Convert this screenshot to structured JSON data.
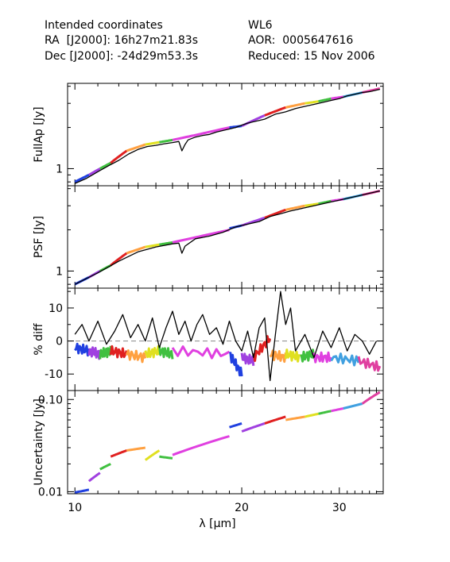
{
  "header": {
    "left_line1": "Intended coordinates",
    "left_line2": "RA  [J2000]: 16h27m21.83s",
    "left_line3": "Dec [J2000]: -24d29m53.3s",
    "right_line1": "WL6",
    "right_line2": "AOR:  0005647616",
    "right_line3": "Reduced: 15 Nov 2006"
  },
  "chart_data": [
    {
      "type": "line",
      "panel": "fullap",
      "ylabel": "FullAp [Jy]",
      "yscale": "log",
      "ylim": [
        0.75,
        4.2
      ],
      "ytick_labels": [
        {
          "value": 1,
          "label": "1"
        }
      ],
      "series": [
        {
          "color": "#000000",
          "x": [
            10.0,
            10.5,
            11.0,
            11.5,
            12.0,
            12.5,
            13.0,
            13.5,
            14.0,
            14.5,
            15.0,
            15.4,
            15.6,
            15.8,
            16.0,
            16.5,
            17.0,
            17.5,
            18.0,
            18.5,
            19.0,
            19.5,
            20.0,
            20.5,
            21.0,
            21.5,
            22.0,
            22.5,
            23.0,
            23.5,
            24.0,
            25.0,
            26.0,
            27.0,
            28.0,
            29.0,
            30.0,
            31.0,
            32.0,
            33.0,
            34.0,
            35.0,
            35.5
          ],
          "y": [
            0.78,
            0.85,
            0.95,
            1.05,
            1.15,
            1.28,
            1.38,
            1.45,
            1.48,
            1.52,
            1.55,
            1.58,
            1.35,
            1.5,
            1.62,
            1.7,
            1.75,
            1.78,
            1.85,
            1.9,
            1.95,
            2.0,
            2.08,
            2.15,
            2.2,
            2.25,
            2.3,
            2.4,
            2.5,
            2.55,
            2.6,
            2.75,
            2.85,
            2.95,
            3.05,
            3.15,
            3.25,
            3.4,
            3.5,
            3.6,
            3.65,
            3.75,
            3.8
          ]
        }
      ],
      "colored_series": [
        {
          "color": "#2040e0",
          "x": [
            10.0,
            10.6
          ],
          "y": [
            0.8,
            0.9
          ]
        },
        {
          "color": "#a040e0",
          "x": [
            10.6,
            11.1
          ],
          "y": [
            0.9,
            1.0
          ]
        },
        {
          "color": "#40c040",
          "x": [
            11.1,
            11.6
          ],
          "y": [
            1.0,
            1.1
          ]
        },
        {
          "color": "#e02020",
          "x": [
            11.6,
            12.4
          ],
          "y": [
            1.1,
            1.35
          ]
        },
        {
          "color": "#ffa040",
          "x": [
            12.4,
            13.4
          ],
          "y": [
            1.35,
            1.5
          ]
        },
        {
          "color": "#e0e020",
          "x": [
            13.4,
            14.2
          ],
          "y": [
            1.5,
            1.56
          ]
        },
        {
          "color": "#40c040",
          "x": [
            14.2,
            15.0
          ],
          "y": [
            1.56,
            1.62
          ]
        },
        {
          "color": "#e040e0",
          "x": [
            15.0,
            16.4
          ],
          "y": [
            1.62,
            1.75
          ]
        },
        {
          "color": "#e040e0",
          "x": [
            16.4,
            19.0
          ],
          "y": [
            1.75,
            2.0
          ]
        },
        {
          "color": "#2040e0",
          "x": [
            19.0,
            20.0
          ],
          "y": [
            2.0,
            2.05
          ]
        },
        {
          "color": "#a040e0",
          "x": [
            20.0,
            22.0
          ],
          "y": [
            2.05,
            2.45
          ]
        },
        {
          "color": "#e02020",
          "x": [
            22.0,
            24.0
          ],
          "y": [
            2.45,
            2.8
          ]
        },
        {
          "color": "#ffa040",
          "x": [
            24.0,
            26.0
          ],
          "y": [
            2.8,
            3.0
          ]
        },
        {
          "color": "#e0e020",
          "x": [
            26.0,
            27.5
          ],
          "y": [
            3.0,
            3.1
          ]
        },
        {
          "color": "#40c040",
          "x": [
            27.5,
            29.0
          ],
          "y": [
            3.1,
            3.25
          ]
        },
        {
          "color": "#e040e0",
          "x": [
            29.0,
            30.5
          ],
          "y": [
            3.25,
            3.35
          ]
        },
        {
          "color": "#40a0e0",
          "x": [
            30.5,
            33.0
          ],
          "y": [
            3.35,
            3.6
          ]
        },
        {
          "color": "#e040a0",
          "x": [
            33.0,
            35.5
          ],
          "y": [
            3.6,
            3.85
          ]
        }
      ]
    },
    {
      "type": "line",
      "panel": "psf",
      "ylabel": "PSF [Jy]",
      "yscale": "log",
      "ylim": [
        0.75,
        4.2
      ],
      "ytick_labels": [
        {
          "value": 1,
          "label": "1"
        }
      ],
      "series": [
        {
          "color": "#000000",
          "x": [
            10.0,
            11.0,
            12.0,
            13.0,
            14.0,
            15.0,
            15.4,
            15.6,
            15.8,
            16.5,
            17.5,
            18.5,
            19.5,
            20.5,
            21.5,
            22.5,
            23.5,
            24.5,
            26.0,
            28.0,
            30.0,
            32.0,
            34.0,
            35.5
          ],
          "y": [
            0.8,
            0.97,
            1.18,
            1.38,
            1.5,
            1.58,
            1.6,
            1.35,
            1.52,
            1.72,
            1.8,
            1.92,
            2.1,
            2.2,
            2.3,
            2.5,
            2.62,
            2.75,
            2.9,
            3.1,
            3.3,
            3.5,
            3.7,
            3.85
          ]
        }
      ],
      "colored_series": [
        {
          "color": "#2040e0",
          "x": [
            10.0,
            10.6
          ],
          "y": [
            0.8,
            0.9
          ]
        },
        {
          "color": "#a040e0",
          "x": [
            10.6,
            11.1
          ],
          "y": [
            0.9,
            1.0
          ]
        },
        {
          "color": "#40c040",
          "x": [
            11.1,
            11.6
          ],
          "y": [
            1.0,
            1.1
          ]
        },
        {
          "color": "#e02020",
          "x": [
            11.6,
            12.4
          ],
          "y": [
            1.1,
            1.35
          ]
        },
        {
          "color": "#ffa040",
          "x": [
            12.4,
            13.4
          ],
          "y": [
            1.35,
            1.5
          ]
        },
        {
          "color": "#e0e020",
          "x": [
            13.4,
            14.2
          ],
          "y": [
            1.5,
            1.56
          ]
        },
        {
          "color": "#40c040",
          "x": [
            14.2,
            15.0
          ],
          "y": [
            1.56,
            1.62
          ]
        },
        {
          "color": "#e040e0",
          "x": [
            15.0,
            19.0
          ],
          "y": [
            1.62,
            2.0
          ]
        },
        {
          "color": "#2040e0",
          "x": [
            19.0,
            20.0
          ],
          "y": [
            2.05,
            2.15
          ]
        },
        {
          "color": "#a040e0",
          "x": [
            20.0,
            22.0
          ],
          "y": [
            2.15,
            2.45
          ]
        },
        {
          "color": "#e02020",
          "x": [
            22.0,
            24.0
          ],
          "y": [
            2.45,
            2.8
          ]
        },
        {
          "color": "#ffa040",
          "x": [
            24.0,
            26.0
          ],
          "y": [
            2.8,
            3.0
          ]
        },
        {
          "color": "#e0e020",
          "x": [
            26.0,
            27.5
          ],
          "y": [
            3.0,
            3.1
          ]
        },
        {
          "color": "#40c040",
          "x": [
            27.5,
            29.0
          ],
          "y": [
            3.1,
            3.25
          ]
        },
        {
          "color": "#e040e0",
          "x": [
            29.0,
            30.5
          ],
          "y": [
            3.25,
            3.35
          ]
        },
        {
          "color": "#40a0e0",
          "x": [
            30.5,
            33.0
          ],
          "y": [
            3.35,
            3.6
          ]
        },
        {
          "color": "#e040a0",
          "x": [
            33.0,
            35.5
          ],
          "y": [
            3.6,
            3.85
          ]
        }
      ]
    },
    {
      "type": "line",
      "panel": "pctdiff",
      "ylabel": "% diff",
      "yscale": "linear",
      "ylim": [
        -15,
        16
      ],
      "ytick_labels": [
        {
          "value": 10,
          "label": "10"
        },
        {
          "value": 0,
          "label": "0"
        },
        {
          "value": -10,
          "label": "-10"
        }
      ],
      "zero_line": true,
      "series": [
        {
          "color": "#000000",
          "x": [
            10.0,
            10.3,
            10.6,
            11.0,
            11.4,
            11.8,
            12.2,
            12.6,
            13.0,
            13.4,
            13.8,
            14.2,
            14.6,
            15.0,
            15.4,
            15.8,
            16.2,
            16.6,
            17.0,
            17.5,
            18.0,
            18.5,
            19.0,
            19.5,
            20.0,
            20.5,
            21.0,
            21.5,
            22.0,
            22.5,
            23.0,
            23.5,
            24.0,
            24.5,
            25.0,
            26.0,
            27.0,
            28.0,
            29.0,
            30.0,
            31.0,
            32.0,
            33.0,
            34.0,
            35.0
          ],
          "y": [
            2,
            5,
            0,
            6,
            -1,
            3,
            8,
            1,
            5,
            0,
            7,
            -2,
            4,
            9,
            2,
            6,
            0,
            5,
            8,
            2,
            4,
            -1,
            6,
            0,
            -3,
            3,
            -5,
            4,
            7,
            -12,
            2,
            15,
            5,
            10,
            -3,
            2,
            -5,
            3,
            -2,
            4,
            -3,
            2,
            0,
            -4,
            0
          ]
        }
      ],
      "colored_series": [
        {
          "color": "#2040e0",
          "x": [
            10.0,
            10.6
          ],
          "y": [
            -2,
            -3
          ]
        },
        {
          "color": "#a040e0",
          "x": [
            10.6,
            11.1
          ],
          "y": [
            -3,
            -4
          ]
        },
        {
          "color": "#40c040",
          "x": [
            11.1,
            11.6
          ],
          "y": [
            -4,
            -3
          ]
        },
        {
          "color": "#e02020",
          "x": [
            11.6,
            12.4
          ],
          "y": [
            -3,
            -4
          ]
        },
        {
          "color": "#ffa040",
          "x": [
            12.4,
            13.4
          ],
          "y": [
            -4,
            -5
          ]
        },
        {
          "color": "#e0e020",
          "x": [
            13.4,
            14.2
          ],
          "y": [
            -4,
            -3
          ]
        },
        {
          "color": "#40c040",
          "x": [
            14.2,
            15.0
          ],
          "y": [
            -3,
            -4
          ]
        },
        {
          "color": "#e040e0",
          "x": [
            15.0,
            19.0
          ],
          "y": [
            -3,
            -4
          ]
        },
        {
          "color": "#2040e0",
          "x": [
            19.0,
            20.0
          ],
          "y": [
            -4,
            -10
          ]
        },
        {
          "color": "#a040e0",
          "x": [
            20.0,
            21.0
          ],
          "y": [
            -5,
            -6
          ]
        },
        {
          "color": "#e02020",
          "x": [
            21.0,
            22.5
          ],
          "y": [
            -5,
            1
          ]
        },
        {
          "color": "#ffa040",
          "x": [
            22.5,
            24.0
          ],
          "y": [
            -4,
            -5
          ]
        },
        {
          "color": "#e0e020",
          "x": [
            24.0,
            25.5
          ],
          "y": [
            -4,
            -5
          ]
        },
        {
          "color": "#40c040",
          "x": [
            25.5,
            27.0
          ],
          "y": [
            -5,
            -4
          ]
        },
        {
          "color": "#e040e0",
          "x": [
            27.0,
            29.0
          ],
          "y": [
            -5,
            -5
          ]
        },
        {
          "color": "#40a0e0",
          "x": [
            29.0,
            32.5
          ],
          "y": [
            -5,
            -6
          ]
        },
        {
          "color": "#e040a0",
          "x": [
            32.5,
            35.5
          ],
          "y": [
            -6,
            -8
          ]
        }
      ]
    },
    {
      "type": "line",
      "panel": "uncertainty",
      "ylabel": "Uncertainty [Jy]",
      "xlabel": "λ [μm]",
      "yscale": "log",
      "ylim": [
        0.0095,
        0.125
      ],
      "ytick_labels": [
        {
          "value": 0.1,
          "label": "0.10"
        },
        {
          "value": 0.01,
          "label": "0.01"
        }
      ],
      "xscale": "log",
      "xlim": [
        9.7,
        36
      ],
      "xtick_labels": [
        {
          "value": 10,
          "label": "10"
        },
        {
          "value": 20,
          "label": "20"
        },
        {
          "value": 30,
          "label": "30"
        }
      ],
      "series": [],
      "colored_series": [
        {
          "color": "#2040e0",
          "x": [
            10.0,
            10.6
          ],
          "y": [
            0.0098,
            0.0105
          ]
        },
        {
          "color": "#a040e0",
          "x": [
            10.6,
            11.1
          ],
          "y": [
            0.013,
            0.016
          ]
        },
        {
          "color": "#40c040",
          "x": [
            11.1,
            11.6
          ],
          "y": [
            0.0175,
            0.02
          ]
        },
        {
          "color": "#e02020",
          "x": [
            11.6,
            12.4
          ],
          "y": [
            0.024,
            0.028
          ]
        },
        {
          "color": "#ffa040",
          "x": [
            12.4,
            13.4
          ],
          "y": [
            0.028,
            0.03
          ]
        },
        {
          "color": "#e0e020",
          "x": [
            13.4,
            14.2
          ],
          "y": [
            0.022,
            0.028
          ]
        },
        {
          "color": "#40c040",
          "x": [
            14.2,
            15.0
          ],
          "y": [
            0.024,
            0.023
          ]
        },
        {
          "color": "#e040e0",
          "x": [
            15.0,
            19.0
          ],
          "y": [
            0.025,
            0.04
          ]
        },
        {
          "color": "#2040e0",
          "x": [
            19.0,
            20.0
          ],
          "y": [
            0.05,
            0.055
          ]
        },
        {
          "color": "#a040e0",
          "x": [
            20.0,
            22.0
          ],
          "y": [
            0.045,
            0.055
          ]
        },
        {
          "color": "#e02020",
          "x": [
            22.0,
            24.0
          ],
          "y": [
            0.055,
            0.065
          ]
        },
        {
          "color": "#ffa040",
          "x": [
            24.0,
            26.0
          ],
          "y": [
            0.06,
            0.065
          ]
        },
        {
          "color": "#e0e020",
          "x": [
            26.0,
            27.5
          ],
          "y": [
            0.065,
            0.07
          ]
        },
        {
          "color": "#40c040",
          "x": [
            27.5,
            29.0
          ],
          "y": [
            0.07,
            0.075
          ]
        },
        {
          "color": "#e040e0",
          "x": [
            29.0,
            30.5
          ],
          "y": [
            0.075,
            0.08
          ]
        },
        {
          "color": "#40a0e0",
          "x": [
            30.5,
            33.0
          ],
          "y": [
            0.08,
            0.09
          ]
        },
        {
          "color": "#e040a0",
          "x": [
            33.0,
            35.5
          ],
          "y": [
            0.09,
            0.12
          ]
        }
      ]
    }
  ]
}
